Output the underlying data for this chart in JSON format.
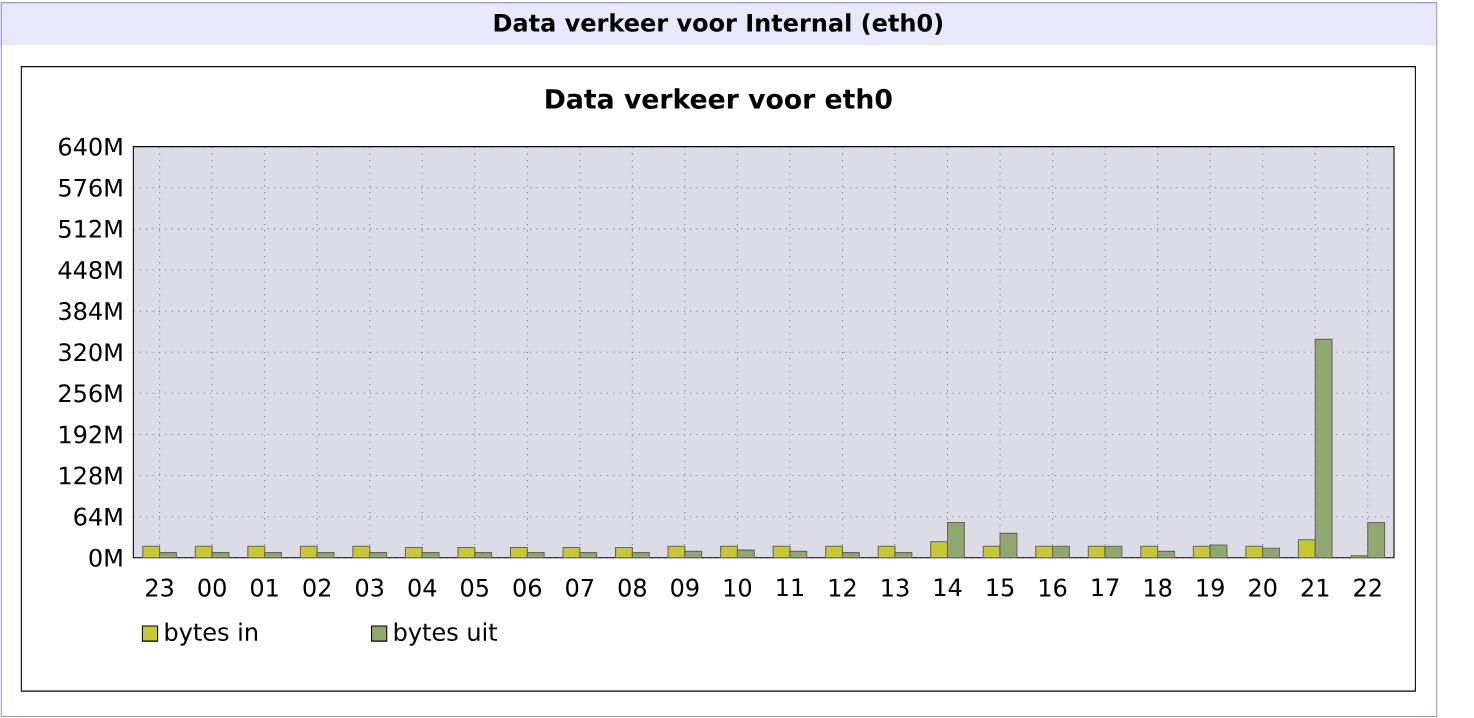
{
  "chart_data": {
    "type": "bar",
    "title": "Data verkeer voor Internal (eth0)",
    "subtitle": "Data verkeer voor eth0",
    "categories": [
      "23",
      "00",
      "01",
      "02",
      "03",
      "04",
      "05",
      "06",
      "07",
      "08",
      "09",
      "10",
      "11",
      "12",
      "13",
      "14",
      "15",
      "16",
      "17",
      "18",
      "19",
      "20",
      "21",
      "22"
    ],
    "series": [
      {
        "name": "bytes in",
        "color": "#c8c832",
        "values": [
          18,
          18,
          18,
          18,
          18,
          16,
          16,
          16,
          16,
          16,
          18,
          18,
          18,
          18,
          18,
          25,
          18,
          18,
          18,
          18,
          18,
          18,
          28,
          3
        ]
      },
      {
        "name": "bytes uit",
        "color": "#8fa870",
        "values": [
          8,
          8,
          8,
          8,
          8,
          8,
          8,
          8,
          8,
          8,
          10,
          12,
          10,
          8,
          8,
          55,
          38,
          18,
          18,
          10,
          20,
          15,
          340,
          55
        ]
      }
    ],
    "ylim": [
      0,
      640
    ],
    "yticks": [
      {
        "value": 0,
        "label": "0M"
      },
      {
        "value": 64,
        "label": "64M"
      },
      {
        "value": 128,
        "label": "128M"
      },
      {
        "value": 192,
        "label": "192M"
      },
      {
        "value": 256,
        "label": "256M"
      },
      {
        "value": 320,
        "label": "320M"
      },
      {
        "value": 384,
        "label": "384M"
      },
      {
        "value": 448,
        "label": "448M"
      },
      {
        "value": 512,
        "label": "512M"
      },
      {
        "value": 576,
        "label": "576M"
      },
      {
        "value": 640,
        "label": "640M"
      }
    ],
    "grid": true,
    "legend": "bottom left"
  }
}
